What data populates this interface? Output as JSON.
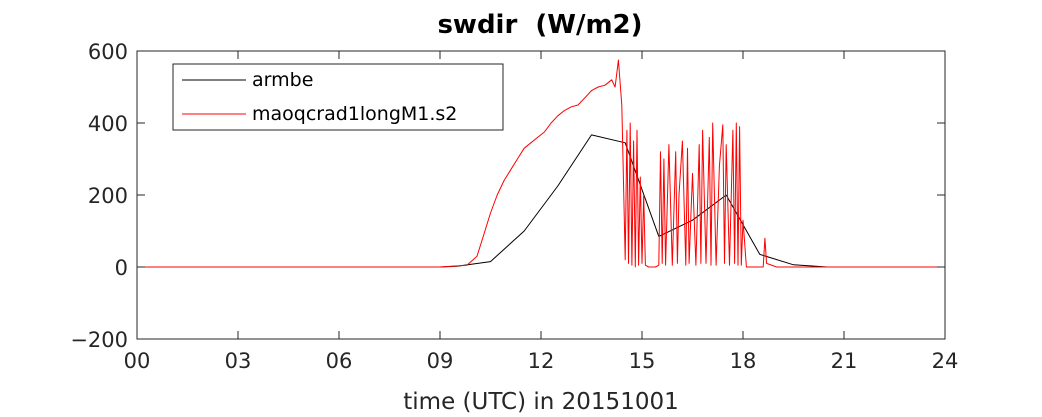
{
  "chart_data": {
    "type": "line",
    "title": "swdir  (W/m2)",
    "xlabel": "time (UTC) in 20151001",
    "ylabel": "",
    "xlim": [
      0,
      24
    ],
    "ylim": [
      -200,
      600
    ],
    "x_ticks": [
      0,
      3,
      6,
      9,
      12,
      15,
      18,
      21,
      24
    ],
    "x_tick_labels": [
      "00",
      "03",
      "06",
      "09",
      "12",
      "15",
      "18",
      "21",
      "24"
    ],
    "y_ticks": [
      -200,
      0,
      200,
      400,
      600
    ],
    "y_tick_labels": [
      "−200",
      "0",
      "200",
      "400",
      "600"
    ],
    "grid": false,
    "legend_position": "top-left",
    "series": [
      {
        "name": "armbe",
        "color": "#000000",
        "x": [
          0,
          1,
          2,
          3,
          4,
          5,
          6,
          7,
          8,
          9,
          9.5,
          10.5,
          11.5,
          12.5,
          13.5,
          14.5,
          15.5,
          16.5,
          17.5,
          18.5,
          19.5,
          20.5,
          21.5,
          22.5,
          23.5,
          24
        ],
        "y": [
          0,
          0,
          0,
          0,
          0,
          0,
          0,
          0,
          0,
          0,
          2,
          15,
          100,
          225,
          367,
          345,
          85,
          130,
          200,
          35,
          6,
          0,
          0,
          0,
          0,
          0
        ]
      },
      {
        "name": "maoqcrad1longM1.s2",
        "color": "#ff0000",
        "x": [
          0,
          2,
          4,
          6,
          8,
          9,
          9.8,
          10.1,
          10.3,
          10.5,
          10.7,
          10.9,
          11.1,
          11.3,
          11.5,
          11.7,
          11.9,
          12.1,
          12.3,
          12.5,
          12.7,
          12.9,
          13.1,
          13.3,
          13.5,
          13.7,
          13.9,
          14.1,
          14.2,
          14.3,
          14.4,
          14.5,
          14.55,
          14.6,
          14.65,
          14.7,
          14.75,
          14.8,
          14.85,
          14.9,
          14.95,
          15.0,
          15.05,
          15.1,
          15.2,
          15.3,
          15.4,
          15.5,
          15.55,
          15.6,
          15.65,
          15.7,
          15.8,
          15.9,
          16.0,
          16.05,
          16.1,
          16.2,
          16.3,
          16.35,
          16.4,
          16.5,
          16.6,
          16.7,
          16.75,
          16.8,
          16.9,
          17.0,
          17.05,
          17.1,
          17.2,
          17.3,
          17.4,
          17.45,
          17.5,
          17.6,
          17.7,
          17.75,
          17.8,
          17.85,
          17.9,
          17.95,
          18.0,
          18.1,
          18.3,
          18.6,
          18.65,
          18.7,
          19.0,
          19.4,
          20,
          22,
          24
        ],
        "y": [
          0,
          0,
          0,
          0,
          0,
          0,
          5,
          30,
          90,
          150,
          200,
          240,
          270,
          300,
          330,
          345,
          360,
          375,
          400,
          420,
          435,
          445,
          450,
          470,
          490,
          500,
          505,
          520,
          500,
          575,
          450,
          20,
          380,
          10,
          400,
          5,
          350,
          0,
          380,
          5,
          250,
          10,
          200,
          5,
          0,
          0,
          0,
          5,
          320,
          10,
          300,
          5,
          340,
          5,
          320,
          10,
          200,
          350,
          5,
          330,
          10,
          260,
          5,
          340,
          10,
          380,
          10,
          360,
          5,
          400,
          5,
          280,
          395,
          10,
          340,
          5,
          380,
          10,
          400,
          5,
          390,
          5,
          130,
          0,
          0,
          0,
          80,
          10,
          0,
          0,
          0,
          0,
          0
        ]
      }
    ]
  }
}
